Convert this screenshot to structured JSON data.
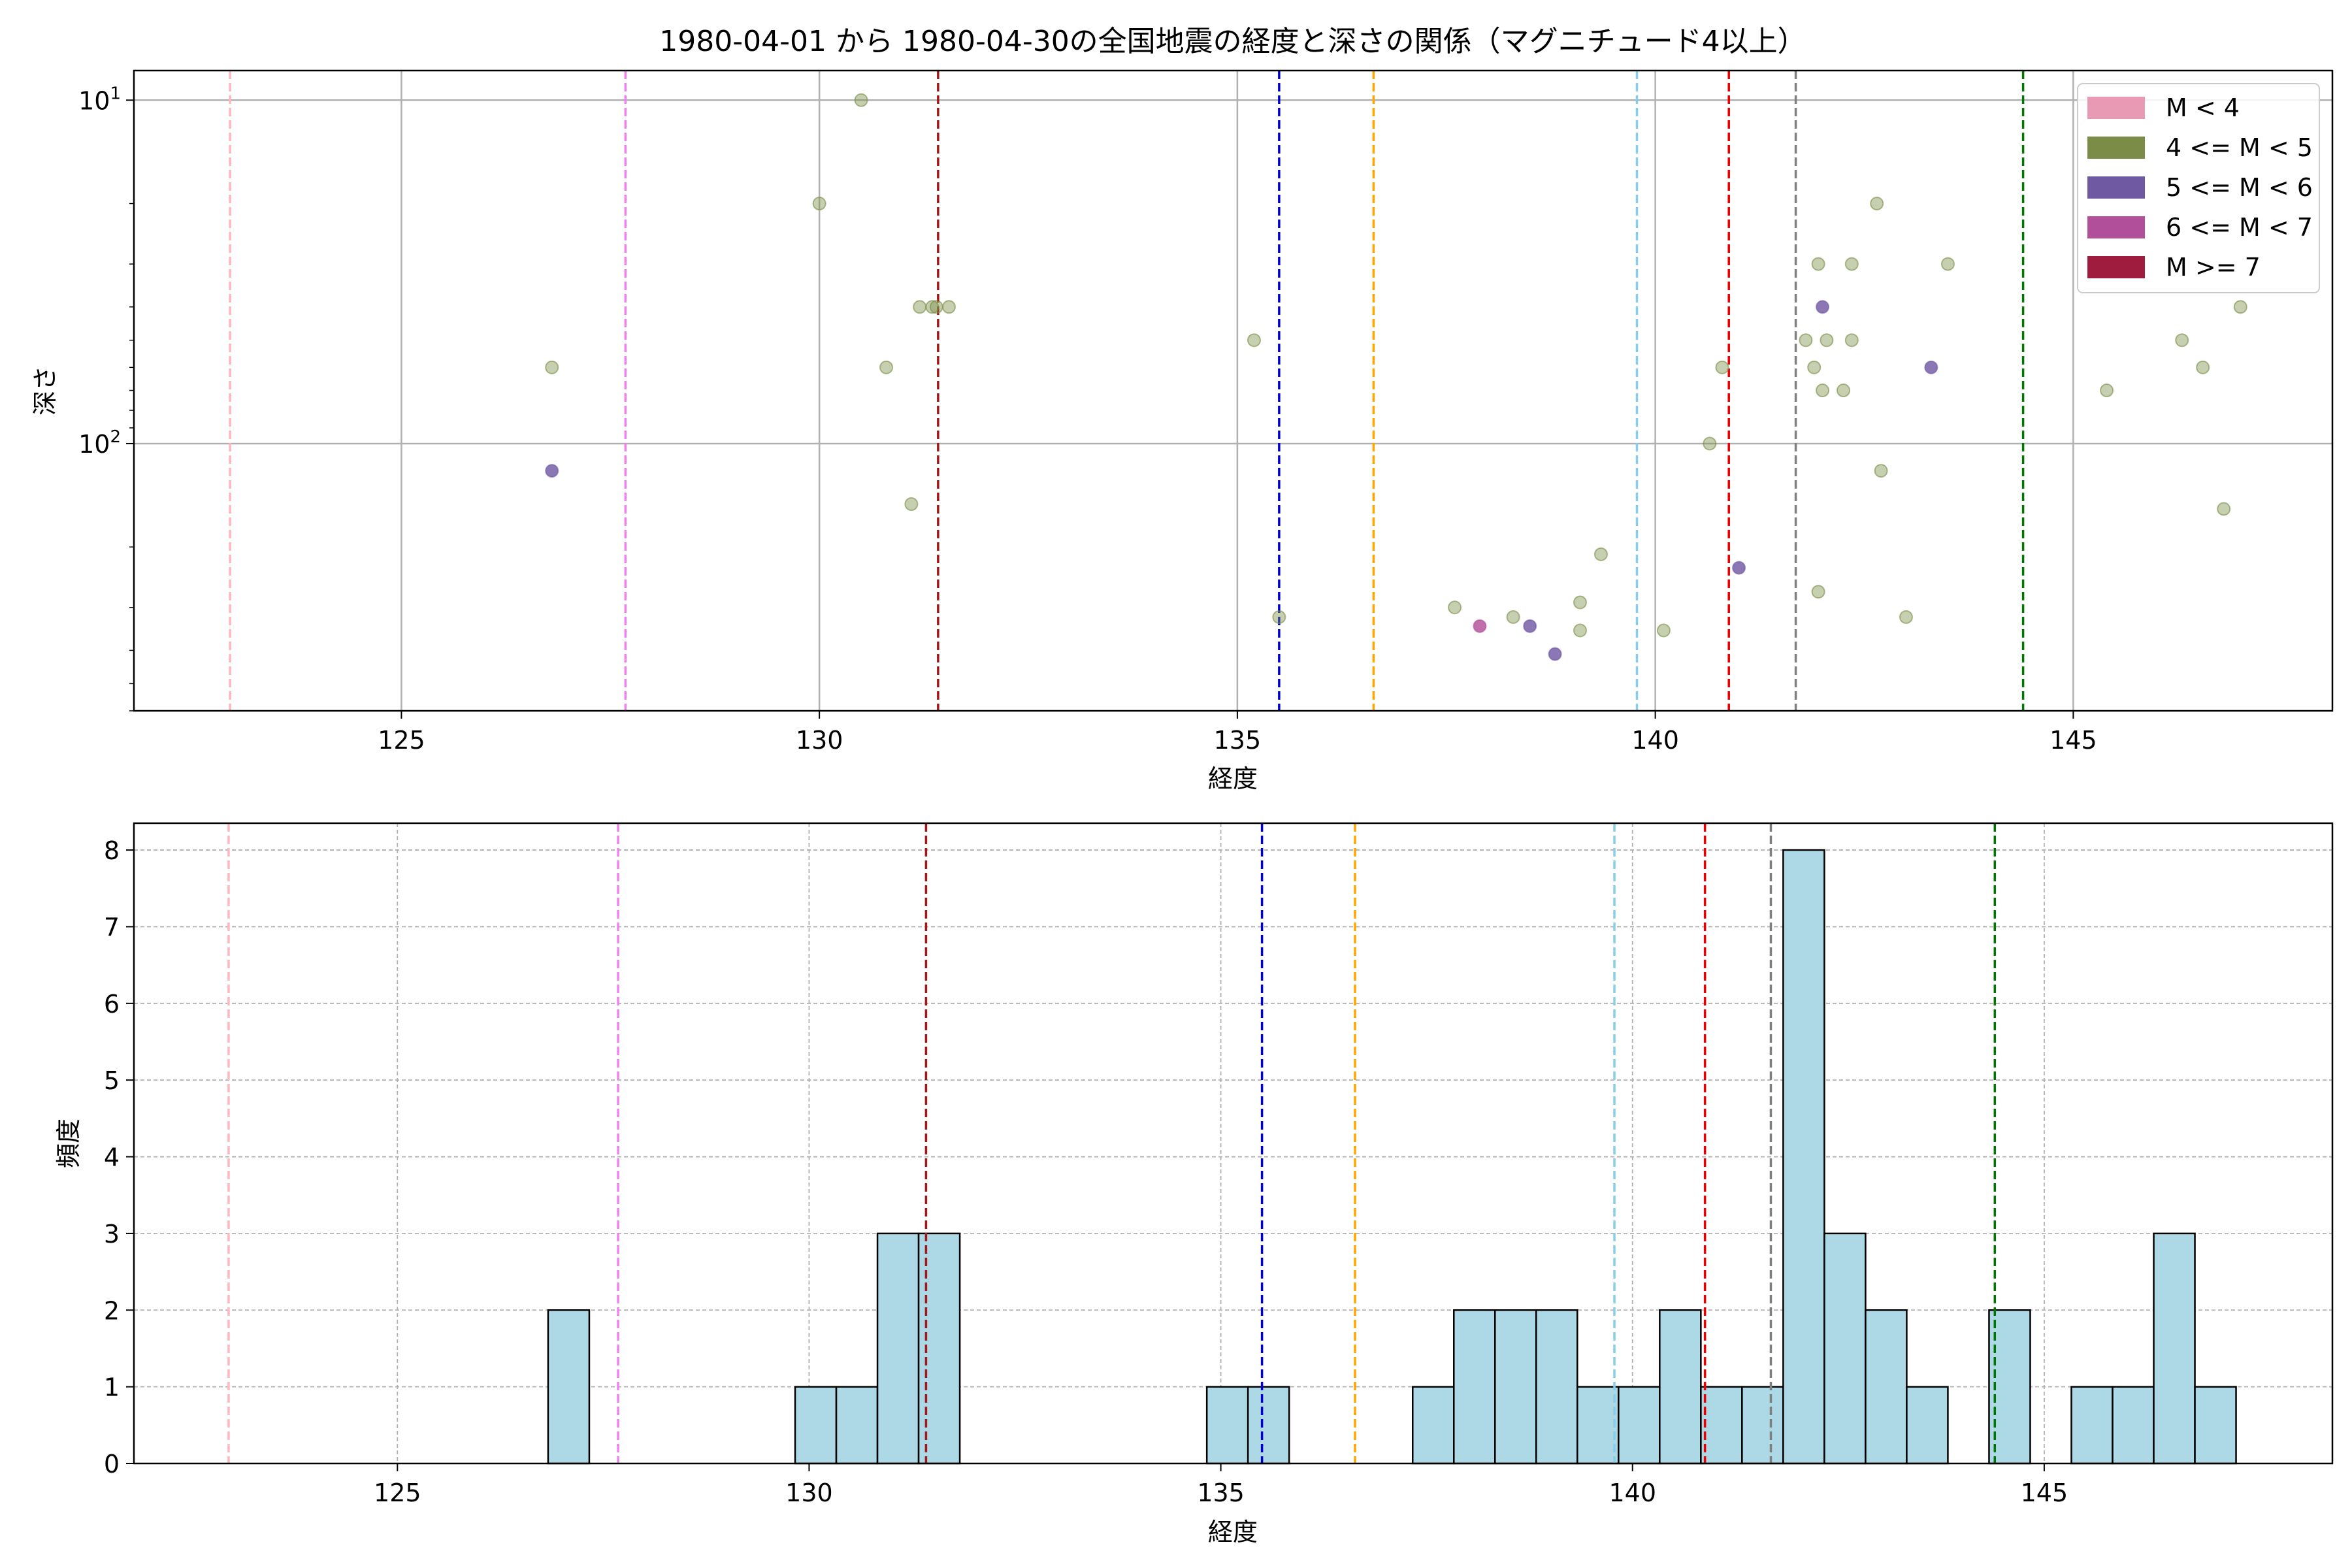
{
  "chart_data": [
    {
      "type": "scatter",
      "title": "1980-04-01 から 1980-04-30の全国地震の経度と深さの関係（マグニチュード4以上）",
      "xlabel": "経度",
      "ylabel": "深さ",
      "xlim": [
        121.8,
        148.1
      ],
      "ylim": [
        600,
        8.2
      ],
      "yscale": "log",
      "y_inverted": true,
      "x_ticks": [
        125,
        130,
        135,
        140,
        145
      ],
      "y_ticks": [
        {
          "value": 10,
          "base": "10",
          "exp": "1"
        },
        {
          "value": 100,
          "base": "10",
          "exp": "2"
        }
      ],
      "grid": true,
      "legend_position": "top-right",
      "legend": [
        {
          "label": "M < 4",
          "color": "#e899b3"
        },
        {
          "label": "4 <= M < 5",
          "color": "#7a8c45"
        },
        {
          "label": "5 <= M < 6",
          "color": "#7059a3"
        },
        {
          "label": "6 <= M < 7",
          "color": "#b24f9a"
        },
        {
          "label": "M >= 7",
          "color": "#a01c3e"
        }
      ],
      "vlines": [
        {
          "x": 122.95,
          "color": "#ffb6c1"
        },
        {
          "x": 127.68,
          "color": "#ee82ee"
        },
        {
          "x": 131.42,
          "color": "#a01818"
        },
        {
          "x": 135.5,
          "color": "#0000cc"
        },
        {
          "x": 136.63,
          "color": "#ffa500"
        },
        {
          "x": 139.78,
          "color": "#87ceeb"
        },
        {
          "x": 140.88,
          "color": "#ee0000"
        },
        {
          "x": 141.68,
          "color": "#808080"
        },
        {
          "x": 144.4,
          "color": "#007700"
        }
      ],
      "series": [
        {
          "label_ref": "4 <= M < 5",
          "color": "#7a8c45",
          "points": [
            [
              126.8,
              60
            ],
            [
              130.5,
              10
            ],
            [
              130.0,
              20
            ],
            [
              131.2,
              40
            ],
            [
              131.35,
              40
            ],
            [
              131.4,
              40
            ],
            [
              131.55,
              40
            ],
            [
              130.8,
              60
            ],
            [
              131.1,
              150
            ],
            [
              135.2,
              50
            ],
            [
              135.5,
              320
            ],
            [
              137.6,
              300
            ],
            [
              138.3,
              320
            ],
            [
              139.1,
              350
            ],
            [
              139.1,
              290
            ],
            [
              139.35,
              210
            ],
            [
              140.1,
              350
            ],
            [
              140.65,
              100
            ],
            [
              140.8,
              60
            ],
            [
              141.8,
              50
            ],
            [
              141.9,
              60
            ],
            [
              141.95,
              30
            ],
            [
              142.0,
              70
            ],
            [
              142.05,
              50
            ],
            [
              142.25,
              70
            ],
            [
              142.35,
              30
            ],
            [
              142.35,
              50
            ],
            [
              142.65,
              20
            ],
            [
              142.7,
              120
            ],
            [
              141.95,
              270
            ],
            [
              143.0,
              320
            ],
            [
              143.5,
              30
            ],
            [
              145.4,
              70
            ],
            [
              146.3,
              50
            ],
            [
              146.55,
              60
            ],
            [
              146.8,
              155
            ],
            [
              147.0,
              40
            ]
          ]
        },
        {
          "label_ref": "5 <= M < 6",
          "color": "#7059a3",
          "points": [
            [
              126.8,
              120
            ],
            [
              138.5,
              340
            ],
            [
              138.8,
              410
            ],
            [
              141.0,
              230
            ],
            [
              142.0,
              40
            ],
            [
              143.3,
              60
            ]
          ]
        },
        {
          "label_ref": "6 <= M < 7",
          "color": "#b24f9a",
          "points": [
            [
              137.9,
              340
            ]
          ]
        }
      ]
    },
    {
      "type": "bar",
      "xlabel": "経度",
      "ylabel": "頻度",
      "xlim": [
        121.8,
        148.5
      ],
      "ylim": [
        0,
        8.35
      ],
      "x_ticks": [
        125,
        130,
        135,
        140,
        145
      ],
      "y_ticks": [
        0,
        1,
        2,
        3,
        4,
        5,
        6,
        7,
        8
      ],
      "grid": true,
      "bar_color": "#add8e6",
      "bins": [
        {
          "start": 126.83,
          "end": 127.33,
          "count": 2
        },
        {
          "start": 129.83,
          "end": 130.33,
          "count": 1
        },
        {
          "start": 130.33,
          "end": 130.83,
          "count": 1
        },
        {
          "start": 130.83,
          "end": 131.33,
          "count": 3
        },
        {
          "start": 131.33,
          "end": 131.83,
          "count": 3
        },
        {
          "start": 134.83,
          "end": 135.33,
          "count": 1
        },
        {
          "start": 135.33,
          "end": 135.83,
          "count": 1
        },
        {
          "start": 137.33,
          "end": 137.83,
          "count": 1
        },
        {
          "start": 137.83,
          "end": 138.33,
          "count": 2
        },
        {
          "start": 138.33,
          "end": 138.83,
          "count": 2
        },
        {
          "start": 138.83,
          "end": 139.33,
          "count": 2
        },
        {
          "start": 139.33,
          "end": 139.83,
          "count": 1
        },
        {
          "start": 139.83,
          "end": 140.33,
          "count": 1
        },
        {
          "start": 140.33,
          "end": 140.83,
          "count": 2
        },
        {
          "start": 140.83,
          "end": 141.33,
          "count": 1
        },
        {
          "start": 141.33,
          "end": 141.83,
          "count": 1
        },
        {
          "start": 141.83,
          "end": 142.33,
          "count": 8
        },
        {
          "start": 142.33,
          "end": 142.83,
          "count": 3
        },
        {
          "start": 142.83,
          "end": 143.33,
          "count": 2
        },
        {
          "start": 143.33,
          "end": 143.83,
          "count": 1
        },
        {
          "start": 144.33,
          "end": 144.83,
          "count": 2
        },
        {
          "start": 145.33,
          "end": 145.83,
          "count": 1
        },
        {
          "start": 145.83,
          "end": 146.33,
          "count": 1
        },
        {
          "start": 146.33,
          "end": 146.83,
          "count": 3
        },
        {
          "start": 146.83,
          "end": 147.33,
          "count": 1
        }
      ],
      "vlines": [
        {
          "x": 122.95,
          "color": "#ffb6c1"
        },
        {
          "x": 127.68,
          "color": "#ee82ee"
        },
        {
          "x": 131.42,
          "color": "#a01818"
        },
        {
          "x": 135.5,
          "color": "#0000cc"
        },
        {
          "x": 136.63,
          "color": "#ffa500"
        },
        {
          "x": 139.78,
          "color": "#87ceeb"
        },
        {
          "x": 140.88,
          "color": "#ee0000"
        },
        {
          "x": 141.68,
          "color": "#808080"
        },
        {
          "x": 144.4,
          "color": "#007700"
        }
      ]
    }
  ]
}
